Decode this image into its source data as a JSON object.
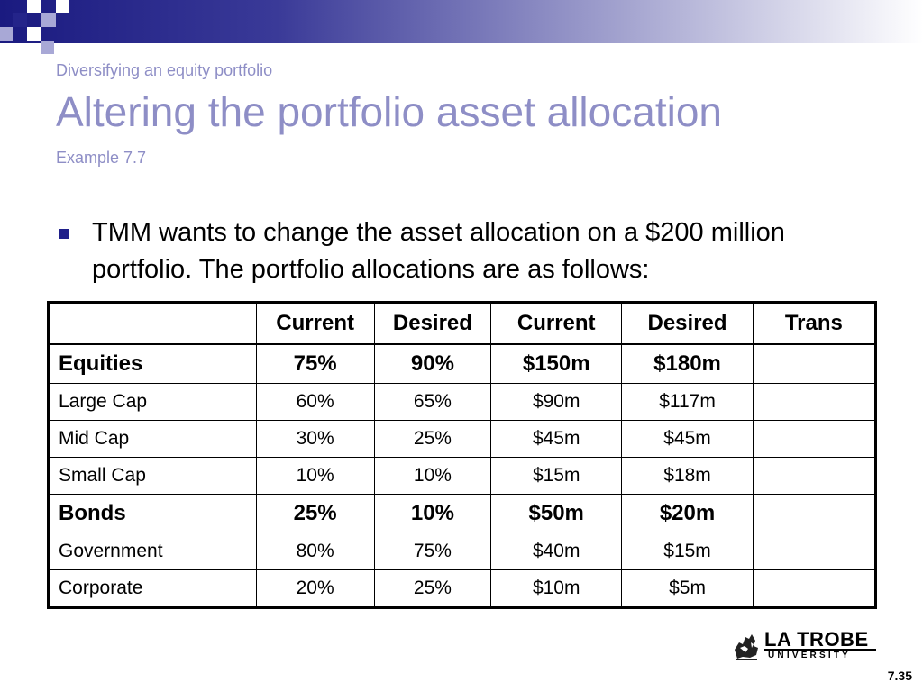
{
  "slide": {
    "subtitle": "Diversifying an equity portfolio",
    "title": "Altering the portfolio asset allocation",
    "example": "Example 7.7",
    "bullet": "TMM wants to change the asset allocation on a $200 million portfolio.  The portfolio allocations are as follows:",
    "page_number": "7.35"
  },
  "table": {
    "headers": [
      "",
      "Current",
      "Desired",
      "Current",
      "Desired",
      "Trans"
    ],
    "rows": [
      {
        "label": "Equities",
        "cells": [
          "75%",
          "90%",
          "$150m",
          "$180m",
          ""
        ]
      },
      {
        "label": "Large Cap",
        "cells": [
          "60%",
          "65%",
          "$90m",
          "$117m",
          ""
        ]
      },
      {
        "label": "Mid Cap",
        "cells": [
          "30%",
          "25%",
          "$45m",
          "$45m",
          ""
        ]
      },
      {
        "label": "Small Cap",
        "cells": [
          "10%",
          "10%",
          "$15m",
          "$18m",
          ""
        ]
      },
      {
        "label": "Bonds",
        "cells": [
          "25%",
          "10%",
          "$50m",
          "$20m",
          ""
        ]
      },
      {
        "label": "Government",
        "cells": [
          "80%",
          "75%",
          "$40m",
          "$15m",
          ""
        ]
      },
      {
        "label": "Corporate",
        "cells": [
          "20%",
          "25%",
          "$10m",
          "$5m",
          ""
        ]
      }
    ]
  },
  "logo": {
    "name": "LA TROBE",
    "sub": "UNIVERSITY"
  },
  "colors": {
    "title": "#8e8ec6",
    "bullet": "#1f1f8a",
    "bar_dark": "#1a1a80"
  },
  "icons": [
    "bullet-square-icon",
    "la-trobe-emblem-icon"
  ]
}
